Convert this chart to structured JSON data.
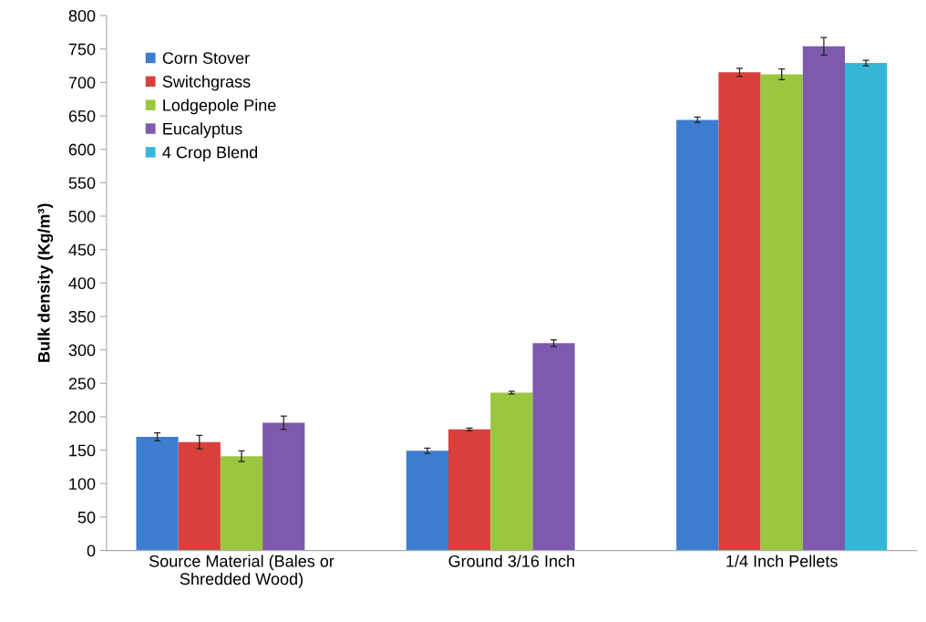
{
  "chart_data": {
    "type": "bar",
    "ylabel": "Bulk density (Kg/m³)",
    "categories": [
      "Source Material (Bales or\nShredded Wood)",
      "Ground 3/16 Inch",
      "1/4 Inch Pellets"
    ],
    "series": [
      {
        "name": "Corn Stover",
        "color": "#3d7dd0",
        "values": [
          170,
          149,
          644
        ],
        "errors": [
          6,
          4,
          4
        ]
      },
      {
        "name": "Switchgrass",
        "color": "#d9403b",
        "values": [
          162,
          181,
          715
        ],
        "errors": [
          10,
          2,
          6
        ]
      },
      {
        "name": "Lodgepole Pine",
        "color": "#9bc63f",
        "values": [
          141,
          236,
          712
        ],
        "errors": [
          8,
          2,
          8
        ]
      },
      {
        "name": "Eucalyptus",
        "color": "#7d5aab",
        "values": [
          191,
          310,
          754
        ],
        "errors": [
          10,
          5,
          13
        ]
      },
      {
        "name": "4 Crop Blend",
        "color": "#35b7d9",
        "values": [
          null,
          null,
          729
        ],
        "errors": [
          null,
          null,
          4
        ]
      }
    ],
    "ylim": [
      0,
      800
    ],
    "yticks": [
      0,
      50,
      100,
      150,
      200,
      250,
      300,
      350,
      400,
      450,
      500,
      550,
      600,
      650,
      700,
      750,
      800
    ],
    "grid": false,
    "legend": "top left"
  }
}
